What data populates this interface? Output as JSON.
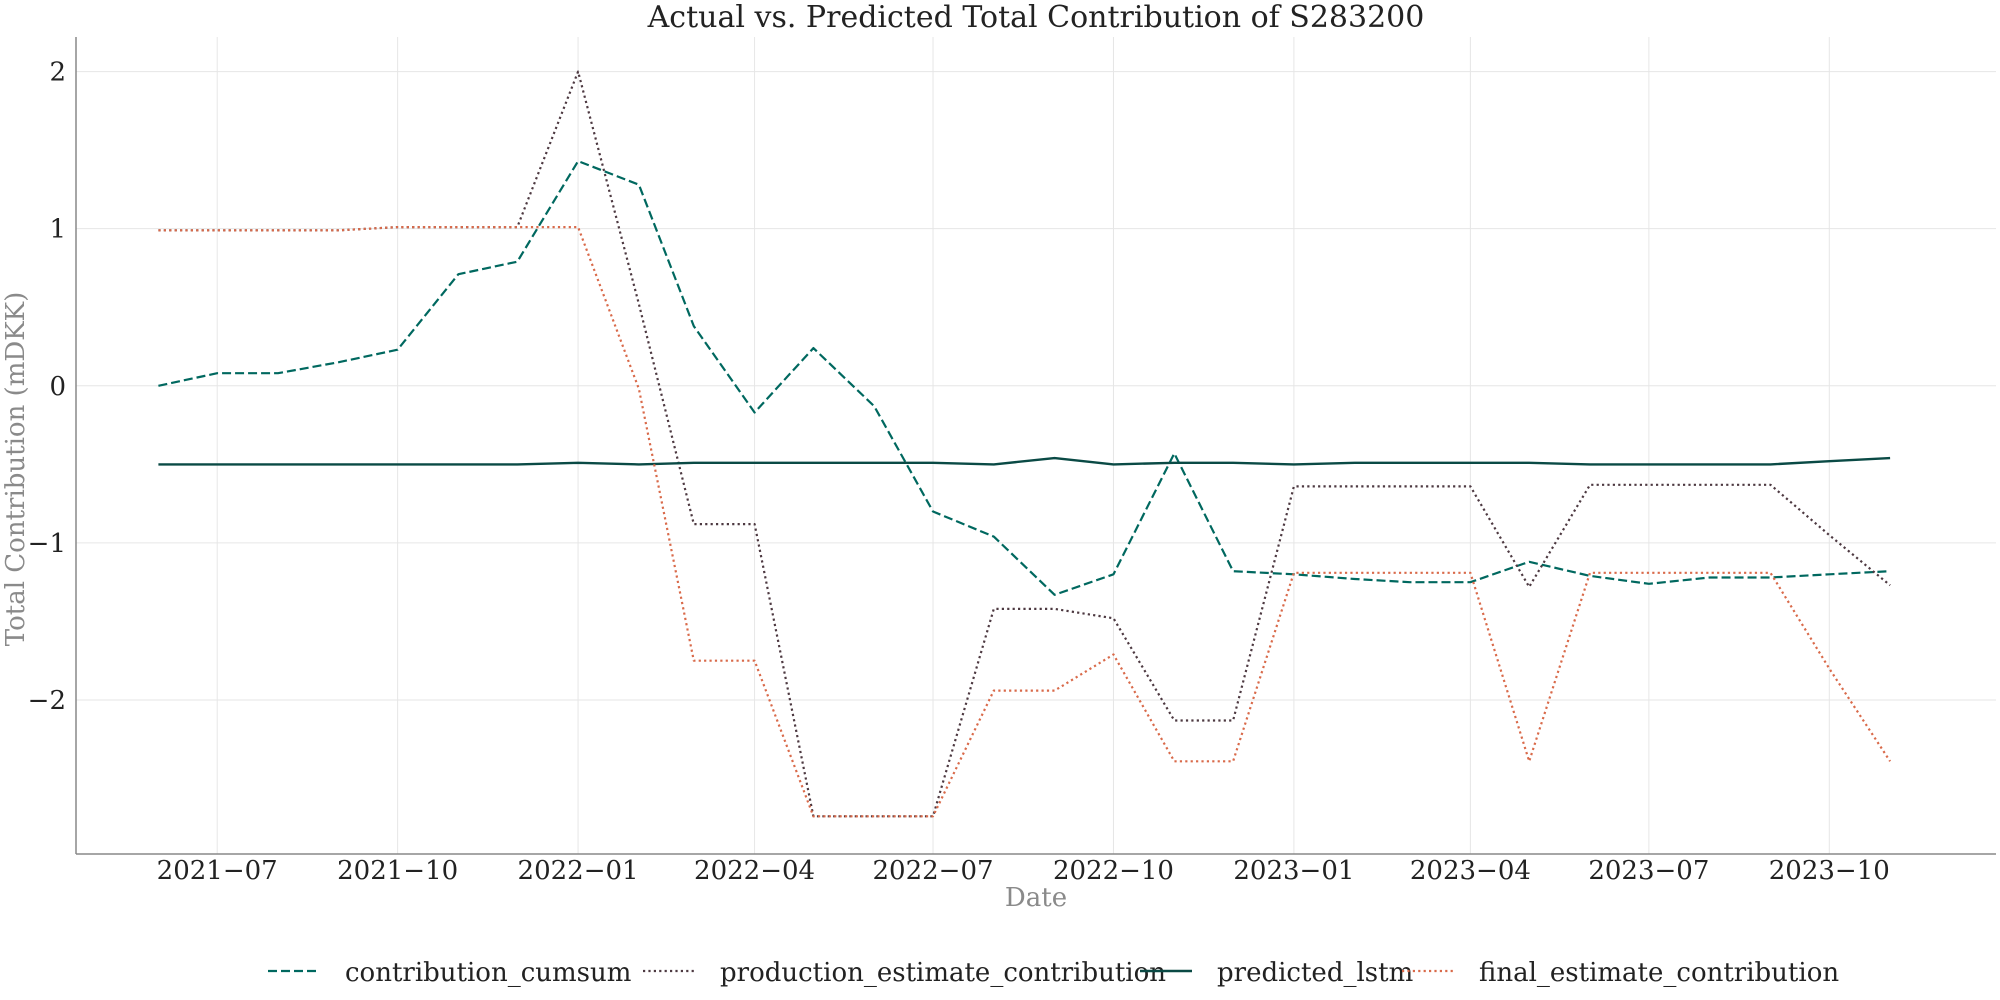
{
  "chart_data": {
    "type": "line",
    "title": "Actual vs. Predicted Total Contribution of S283200",
    "xlabel": "Date",
    "ylabel": "Total Contribution (mDKK)",
    "ylim": [
      -2.98,
      2.22
    ],
    "xlim": [
      "2021-04-20",
      "2023-12-25"
    ],
    "yticks": [
      2,
      1,
      0,
      -1,
      -2
    ],
    "ytick_labels": [
      "2",
      "1",
      "0",
      "−1",
      "−2"
    ],
    "xticks": [
      "2021-07-01",
      "2021-10-01",
      "2022-01-01",
      "2022-04-01",
      "2022-07-01",
      "2022-10-01",
      "2023-01-01",
      "2023-04-01",
      "2023-07-01",
      "2023-10-01"
    ],
    "xtick_labels": [
      "2021−07",
      "2021−10",
      "2022−01",
      "2022−04",
      "2022−07",
      "2022−10",
      "2023−01",
      "2023−04",
      "2023−07",
      "2023−10"
    ],
    "grid": true,
    "legend_placement": "bottom-center",
    "x": [
      "2021-06-01",
      "2021-07-01",
      "2021-08-01",
      "2021-09-01",
      "2021-10-01",
      "2021-11-01",
      "2021-12-01",
      "2022-01-01",
      "2022-02-01",
      "2022-03-01",
      "2022-04-01",
      "2022-05-01",
      "2022-06-01",
      "2022-07-01",
      "2022-08-01",
      "2022-09-01",
      "2022-10-01",
      "2022-11-01",
      "2022-12-01",
      "2023-01-01",
      "2023-02-01",
      "2023-03-01",
      "2023-04-01",
      "2023-05-01",
      "2023-06-01",
      "2023-07-01",
      "2023-08-01",
      "2023-09-01",
      "2023-10-01",
      "2023-11-01"
    ],
    "series": [
      {
        "name": "contribution_cumsum",
        "color": "#00685f",
        "dash": "dashed",
        "values": [
          0.0,
          0.08,
          0.08,
          0.15,
          0.23,
          0.71,
          0.79,
          1.43,
          1.28,
          0.38,
          -0.17,
          0.24,
          -0.13,
          -0.8,
          -0.96,
          -1.33,
          -1.2,
          -0.43,
          -1.18,
          -1.2,
          -1.23,
          -1.25,
          -1.25,
          -1.12,
          -1.21,
          -1.26,
          -1.22,
          -1.22,
          -1.2,
          -1.18
        ]
      },
      {
        "name": "production_estimate_contribution",
        "color": "#4d3941",
        "dash": "dotted",
        "values": [
          0.99,
          0.99,
          0.99,
          0.99,
          1.01,
          1.01,
          1.01,
          2.0,
          0.52,
          -0.88,
          -0.88,
          -2.74,
          -2.74,
          -2.74,
          -1.42,
          -1.42,
          -1.48,
          -2.13,
          -2.13,
          -0.64,
          -0.64,
          -0.64,
          -0.64,
          -1.28,
          -0.63,
          -0.63,
          -0.63,
          -0.63,
          -0.95,
          -1.27
        ]
      },
      {
        "name": "predicted_lstm",
        "color": "#0a4a45",
        "dash": "solid",
        "values": [
          -0.5,
          -0.5,
          -0.5,
          -0.5,
          -0.5,
          -0.5,
          -0.5,
          -0.49,
          -0.5,
          -0.49,
          -0.49,
          -0.49,
          -0.49,
          -0.49,
          -0.5,
          -0.46,
          -0.5,
          -0.49,
          -0.49,
          -0.5,
          -0.49,
          -0.49,
          -0.49,
          -0.49,
          -0.5,
          -0.5,
          -0.5,
          -0.5,
          -0.48,
          -0.46
        ]
      },
      {
        "name": "final_estimate_contribution",
        "color": "#d96a4a",
        "dash": "dotted",
        "values": [
          0.99,
          0.99,
          0.99,
          0.99,
          1.01,
          1.01,
          1.01,
          1.01,
          -0.02,
          -1.75,
          -1.75,
          -2.74,
          -2.74,
          -2.74,
          -1.94,
          -1.94,
          -1.71,
          -2.39,
          -2.39,
          -1.19,
          -1.19,
          -1.19,
          -1.19,
          -2.39,
          -1.19,
          -1.19,
          -1.19,
          -1.19,
          -1.8,
          -2.39
        ]
      }
    ]
  }
}
